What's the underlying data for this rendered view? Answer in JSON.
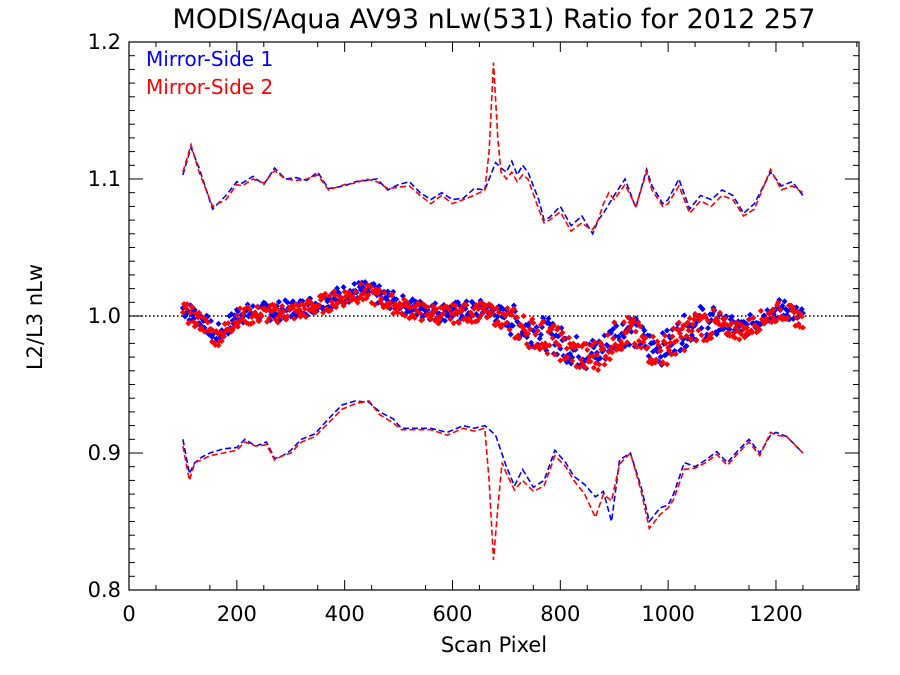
{
  "chart_data": {
    "type": "scatter",
    "title": "MODIS/Aqua AV93 nLw(531) Ratio for 2012 257",
    "xlabel": "Scan Pixel",
    "ylabel": "L2/L3 nLw",
    "xlim": [
      0,
      1354
    ],
    "ylim": [
      0.8,
      1.2
    ],
    "xticks": [
      0,
      200,
      400,
      600,
      800,
      1000,
      1200
    ],
    "yticks": [
      0.8,
      0.9,
      1.0,
      1.1,
      1.2
    ],
    "xtick_labels": [
      "0",
      "200",
      "400",
      "600",
      "800",
      "1000",
      "1200"
    ],
    "ytick_labels": [
      "0.8",
      "0.9",
      "1.0",
      "1.1",
      "1.2"
    ],
    "reference_line": 1.0,
    "legend_position": "top-left",
    "legend": [
      {
        "name": "Mirror-Side 1",
        "color": "#0000ff"
      },
      {
        "name": "Mirror-Side 2",
        "color": "#ff0000"
      }
    ],
    "ratio_profile": {
      "x": [
        100,
        120,
        140,
        160,
        180,
        200,
        240,
        280,
        320,
        360,
        400,
        430,
        460,
        500,
        540,
        580,
        620,
        660,
        700,
        740,
        780,
        820,
        850,
        880,
        900,
        930,
        960,
        990,
        1020,
        1060,
        1100,
        1140,
        1180,
        1210,
        1250
      ],
      "y": [
        1.005,
        1.0,
        0.995,
        0.985,
        0.99,
        1.0,
        1.002,
        1.003,
        1.005,
        1.01,
        1.015,
        1.018,
        1.015,
        1.008,
        1.004,
        1.002,
        1.003,
        1.004,
        0.998,
        0.99,
        0.985,
        0.975,
        0.97,
        0.975,
        0.985,
        0.99,
        0.978,
        0.975,
        0.985,
        0.995,
        0.993,
        0.99,
        1.0,
        1.005,
        0.998
      ]
    },
    "series": [
      {
        "name": "Mirror-Side 1",
        "color": "#0000ff",
        "upper": {
          "x": [
            100,
            115,
            130,
            155,
            180,
            200,
            210,
            230,
            250,
            270,
            290,
            310,
            330,
            350,
            370,
            400,
            420,
            440,
            460,
            480,
            500,
            520,
            540,
            560,
            580,
            600,
            620,
            640,
            660,
            680,
            690,
            700,
            710,
            720,
            730,
            740,
            760,
            770,
            780,
            800,
            820,
            840,
            860,
            870,
            880,
            900,
            920,
            940,
            960,
            970,
            990,
            1000,
            1020,
            1040,
            1060,
            1080,
            1100,
            1120,
            1140,
            1160,
            1190,
            1210,
            1230,
            1250
          ],
          "values": [
            1.103,
            1.123,
            1.108,
            1.078,
            1.088,
            1.098,
            1.097,
            1.102,
            1.096,
            1.108,
            1.1,
            1.101,
            1.099,
            1.105,
            1.093,
            1.095,
            1.098,
            1.099,
            1.1,
            1.092,
            1.096,
            1.098,
            1.09,
            1.085,
            1.09,
            1.085,
            1.086,
            1.093,
            1.092,
            1.112,
            1.108,
            1.105,
            1.113,
            1.103,
            1.11,
            1.105,
            1.085,
            1.07,
            1.072,
            1.08,
            1.066,
            1.073,
            1.06,
            1.07,
            1.075,
            1.088,
            1.1,
            1.079,
            1.107,
            1.095,
            1.082,
            1.085,
            1.1,
            1.078,
            1.088,
            1.085,
            1.092,
            1.088,
            1.075,
            1.082,
            1.105,
            1.095,
            1.098,
            1.088
          ]
        },
        "lower": {
          "x": [
            100,
            112,
            122,
            135,
            150,
            175,
            200,
            215,
            235,
            255,
            270,
            285,
            300,
            320,
            345,
            370,
            395,
            420,
            445,
            465,
            490,
            505,
            530,
            560,
            590,
            620,
            640,
            660,
            680,
            700,
            715,
            730,
            750,
            770,
            790,
            810,
            825,
            845,
            865,
            880,
            895,
            910,
            930,
            950,
            965,
            985,
            1000,
            1010,
            1030,
            1050,
            1070,
            1090,
            1110,
            1130,
            1150,
            1170,
            1190,
            1200,
            1220,
            1250
          ],
          "values": [
            0.91,
            0.885,
            0.893,
            0.897,
            0.9,
            0.903,
            0.904,
            0.91,
            0.905,
            0.908,
            0.896,
            0.898,
            0.902,
            0.91,
            0.914,
            0.925,
            0.935,
            0.938,
            0.937,
            0.93,
            0.925,
            0.918,
            0.918,
            0.918,
            0.915,
            0.92,
            0.918,
            0.92,
            0.913,
            0.89,
            0.876,
            0.888,
            0.875,
            0.88,
            0.902,
            0.893,
            0.883,
            0.877,
            0.868,
            0.872,
            0.85,
            0.895,
            0.9,
            0.875,
            0.85,
            0.86,
            0.862,
            0.87,
            0.893,
            0.89,
            0.895,
            0.901,
            0.893,
            0.902,
            0.91,
            0.9,
            0.913,
            0.915,
            0.912,
            0.9
          ]
        }
      },
      {
        "name": "Mirror-Side 2",
        "color": "#ff0000",
        "upper": {
          "x": [
            100,
            115,
            130,
            155,
            180,
            200,
            210,
            230,
            250,
            270,
            290,
            310,
            330,
            350,
            370,
            400,
            420,
            440,
            460,
            480,
            500,
            520,
            540,
            560,
            580,
            600,
            620,
            640,
            660,
            668,
            676,
            684,
            690,
            700,
            710,
            720,
            730,
            740,
            760,
            770,
            780,
            800,
            820,
            840,
            850,
            860,
            870,
            880,
            890,
            900,
            920,
            940,
            960,
            970,
            990,
            1000,
            1020,
            1040,
            1060,
            1080,
            1100,
            1120,
            1140,
            1160,
            1190,
            1210,
            1230,
            1250
          ],
          "values": [
            1.105,
            1.125,
            1.105,
            1.08,
            1.085,
            1.096,
            1.095,
            1.1,
            1.097,
            1.106,
            1.1,
            1.099,
            1.1,
            1.103,
            1.092,
            1.096,
            1.097,
            1.1,
            1.098,
            1.093,
            1.094,
            1.095,
            1.088,
            1.082,
            1.088,
            1.082,
            1.085,
            1.088,
            1.092,
            1.12,
            1.185,
            1.13,
            1.105,
            1.1,
            1.105,
            1.098,
            1.103,
            1.1,
            1.078,
            1.068,
            1.07,
            1.076,
            1.062,
            1.068,
            1.065,
            1.063,
            1.07,
            1.082,
            1.09,
            1.085,
            1.096,
            1.08,
            1.105,
            1.092,
            1.08,
            1.082,
            1.095,
            1.075,
            1.084,
            1.08,
            1.088,
            1.085,
            1.073,
            1.078,
            1.107,
            1.092,
            1.095,
            1.09
          ]
        },
        "lower": {
          "x": [
            100,
            112,
            122,
            135,
            150,
            175,
            200,
            215,
            235,
            255,
            270,
            285,
            300,
            320,
            345,
            370,
            395,
            420,
            445,
            465,
            490,
            505,
            530,
            560,
            590,
            620,
            640,
            660,
            668,
            676,
            684,
            692,
            700,
            715,
            730,
            750,
            770,
            790,
            810,
            825,
            845,
            865,
            880,
            895,
            910,
            930,
            950,
            965,
            985,
            1000,
            1010,
            1030,
            1050,
            1070,
            1090,
            1110,
            1130,
            1150,
            1170,
            1190,
            1200,
            1220,
            1250
          ],
          "values": [
            0.905,
            0.88,
            0.893,
            0.895,
            0.898,
            0.9,
            0.902,
            0.908,
            0.905,
            0.906,
            0.895,
            0.898,
            0.9,
            0.908,
            0.912,
            0.922,
            0.932,
            0.936,
            0.938,
            0.928,
            0.922,
            0.917,
            0.917,
            0.917,
            0.913,
            0.918,
            0.916,
            0.918,
            0.88,
            0.822,
            0.86,
            0.893,
            0.885,
            0.873,
            0.88,
            0.872,
            0.876,
            0.898,
            0.89,
            0.88,
            0.87,
            0.853,
            0.87,
            0.865,
            0.892,
            0.9,
            0.872,
            0.845,
            0.855,
            0.86,
            0.866,
            0.888,
            0.889,
            0.893,
            0.899,
            0.891,
            0.9,
            0.908,
            0.898,
            0.915,
            0.913,
            0.912,
            0.9
          ]
        }
      }
    ]
  }
}
